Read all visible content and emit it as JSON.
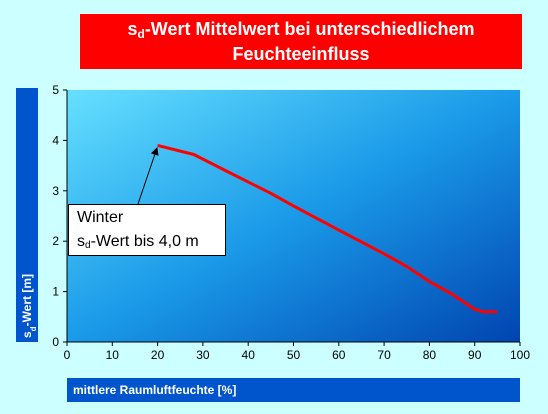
{
  "chart_data": {
    "type": "line",
    "title": [
      "s",
      "d",
      "-Wert Mittelwert bei unterschiedlichem",
      "Feuchteeinfluss"
    ],
    "y_label": [
      "s",
      "d",
      "-Wert [m]"
    ],
    "x_label": "mittlere Raumluftfeuchte [%]",
    "annotation": [
      "Winter",
      "s",
      "d",
      "-Wert bis 4,0 m"
    ],
    "series": [
      {
        "color": "#ff0000",
        "x": [
          20,
          28,
          35,
          45,
          50,
          60,
          70,
          75,
          80,
          85,
          90,
          92,
          95
        ],
        "values": [
          3.9,
          3.72,
          3.4,
          2.95,
          2.7,
          2.22,
          1.75,
          1.5,
          1.2,
          0.95,
          0.65,
          0.6,
          0.6
        ]
      }
    ],
    "xlim": [
      0,
      100
    ],
    "xticks": [
      0,
      10,
      20,
      30,
      40,
      50,
      60,
      70,
      80,
      90,
      100
    ],
    "ylim": [
      0,
      5
    ],
    "yticks": [
      0,
      1,
      2,
      3,
      4,
      5
    ],
    "grid": false
  }
}
